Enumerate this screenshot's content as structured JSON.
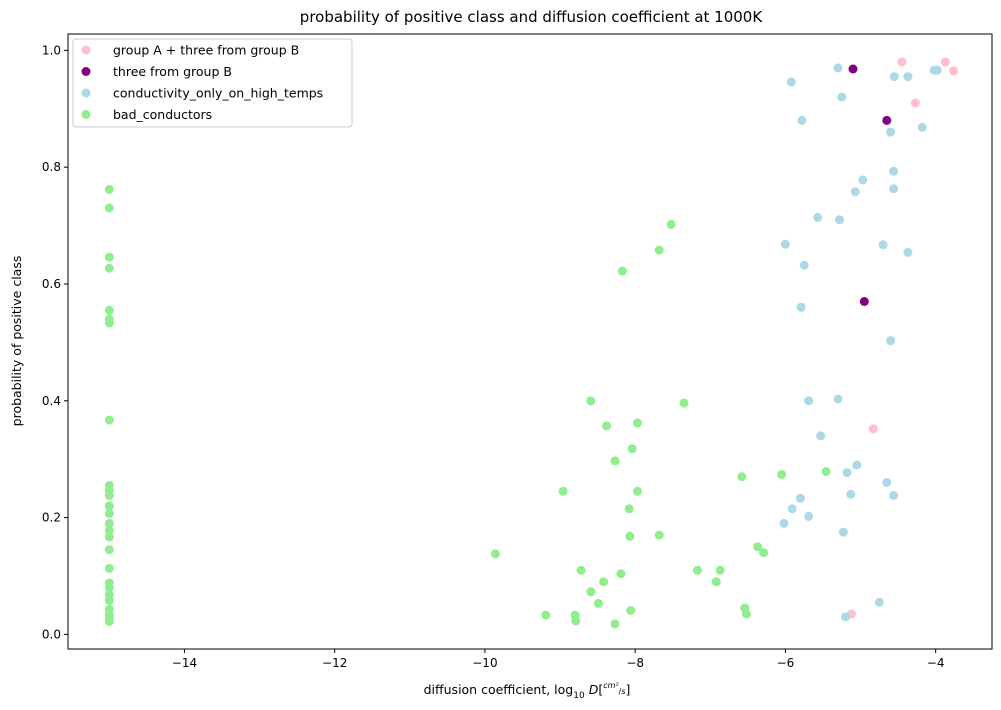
{
  "chart_data": {
    "type": "scatter",
    "title": "probability of positive class and diffusion coefficient at 1000K",
    "xlabel_prefix": "diffusion coefficient, log",
    "xlabel_sub": "10",
    "xlabel_var": "D",
    "xlabel_unit_num": "cm²",
    "xlabel_unit_den": "s",
    "ylabel": "probability of positive class",
    "xlim": [
      -15.55,
      -3.25
    ],
    "ylim": [
      -0.025,
      1.028
    ],
    "xticks": [
      -14,
      -12,
      -10,
      -8,
      -6,
      -4
    ],
    "xtick_labels": [
      "−14",
      "−12",
      "−10",
      "−8",
      "−6",
      "−4"
    ],
    "yticks": [
      0.0,
      0.2,
      0.4,
      0.6,
      0.8,
      1.0
    ],
    "ytick_labels": [
      "0.0",
      "0.2",
      "0.4",
      "0.6",
      "0.8",
      "1.0"
    ],
    "grid": false,
    "legend_position": "top-left",
    "series": [
      {
        "name": "group A + three from group B",
        "color": "#ffc0cb",
        "points": [
          [
            -4.45,
            0.98
          ],
          [
            -3.87,
            0.98
          ],
          [
            -3.76,
            0.965
          ],
          [
            -4.27,
            0.91
          ],
          [
            -4.83,
            0.352
          ],
          [
            -5.12,
            0.035
          ]
        ]
      },
      {
        "name": "three from group B",
        "color": "#800080",
        "points": [
          [
            -5.1,
            0.968
          ],
          [
            -4.65,
            0.88
          ],
          [
            -4.95,
            0.57
          ]
        ]
      },
      {
        "name": "conductivity_only_on_high_temps",
        "color": "#add8e6",
        "points": [
          [
            -5.3,
            0.97
          ],
          [
            -5.92,
            0.946
          ],
          [
            -4.55,
            0.955
          ],
          [
            -4.37,
            0.955
          ],
          [
            -4.02,
            0.966
          ],
          [
            -3.98,
            0.966
          ],
          [
            -5.25,
            0.92
          ],
          [
            -5.78,
            0.88
          ],
          [
            -4.6,
            0.86
          ],
          [
            -4.18,
            0.868
          ],
          [
            -4.56,
            0.793
          ],
          [
            -4.97,
            0.778
          ],
          [
            -5.07,
            0.758
          ],
          [
            -4.56,
            0.763
          ],
          [
            -5.57,
            0.714
          ],
          [
            -5.28,
            0.71
          ],
          [
            -6.0,
            0.668
          ],
          [
            -4.7,
            0.667
          ],
          [
            -4.37,
            0.654
          ],
          [
            -5.75,
            0.632
          ],
          [
            -5.79,
            0.56
          ],
          [
            -4.6,
            0.503
          ],
          [
            -5.69,
            0.4
          ],
          [
            -5.3,
            0.403
          ],
          [
            -5.53,
            0.34
          ],
          [
            -5.05,
            0.29
          ],
          [
            -5.18,
            0.277
          ],
          [
            -4.65,
            0.26
          ],
          [
            -5.13,
            0.24
          ],
          [
            -4.56,
            0.238
          ],
          [
            -5.8,
            0.233
          ],
          [
            -5.91,
            0.215
          ],
          [
            -5.69,
            0.202
          ],
          [
            -6.02,
            0.19
          ],
          [
            -5.23,
            0.175
          ],
          [
            -4.75,
            0.055
          ],
          [
            -5.2,
            0.03
          ]
        ]
      },
      {
        "name": "bad_conductors",
        "color": "#90ee90",
        "points": [
          [
            -15,
            0.762
          ],
          [
            -15,
            0.73
          ],
          [
            -15,
            0.646
          ],
          [
            -15,
            0.627
          ],
          [
            -15,
            0.555
          ],
          [
            -15,
            0.54
          ],
          [
            -15,
            0.533
          ],
          [
            -15,
            0.367
          ],
          [
            -15,
            0.255
          ],
          [
            -15,
            0.247
          ],
          [
            -15,
            0.238
          ],
          [
            -15,
            0.22
          ],
          [
            -15,
            0.207
          ],
          [
            -15,
            0.19
          ],
          [
            -15,
            0.178
          ],
          [
            -15,
            0.167
          ],
          [
            -15,
            0.145
          ],
          [
            -15,
            0.113
          ],
          [
            -15,
            0.088
          ],
          [
            -15,
            0.08
          ],
          [
            -15,
            0.068
          ],
          [
            -15,
            0.058
          ],
          [
            -15,
            0.043
          ],
          [
            -15,
            0.033
          ],
          [
            -15,
            0.027
          ],
          [
            -15,
            0.022
          ],
          [
            -7.52,
            0.702
          ],
          [
            -7.68,
            0.658
          ],
          [
            -8.17,
            0.622
          ],
          [
            -7.35,
            0.396
          ],
          [
            -8.59,
            0.4
          ],
          [
            -8.38,
            0.357
          ],
          [
            -7.97,
            0.362
          ],
          [
            -8.04,
            0.318
          ],
          [
            -8.27,
            0.297
          ],
          [
            -5.46,
            0.279
          ],
          [
            -6.05,
            0.274
          ],
          [
            -6.58,
            0.27
          ],
          [
            -8.96,
            0.245
          ],
          [
            -7.97,
            0.245
          ],
          [
            -8.08,
            0.215
          ],
          [
            -7.68,
            0.17
          ],
          [
            -8.07,
            0.168
          ],
          [
            -6.37,
            0.15
          ],
          [
            -6.29,
            0.14
          ],
          [
            -9.86,
            0.138
          ],
          [
            -8.72,
            0.11
          ],
          [
            -7.17,
            0.11
          ],
          [
            -6.87,
            0.11
          ],
          [
            -8.19,
            0.104
          ],
          [
            -8.42,
            0.09
          ],
          [
            -6.92,
            0.09
          ],
          [
            -8.59,
            0.073
          ],
          [
            -8.49,
            0.053
          ],
          [
            -6.54,
            0.045
          ],
          [
            -8.06,
            0.041
          ],
          [
            -6.52,
            0.035
          ],
          [
            -9.19,
            0.033
          ],
          [
            -8.8,
            0.033
          ],
          [
            -8.79,
            0.023
          ],
          [
            -8.27,
            0.018
          ]
        ]
      }
    ]
  }
}
